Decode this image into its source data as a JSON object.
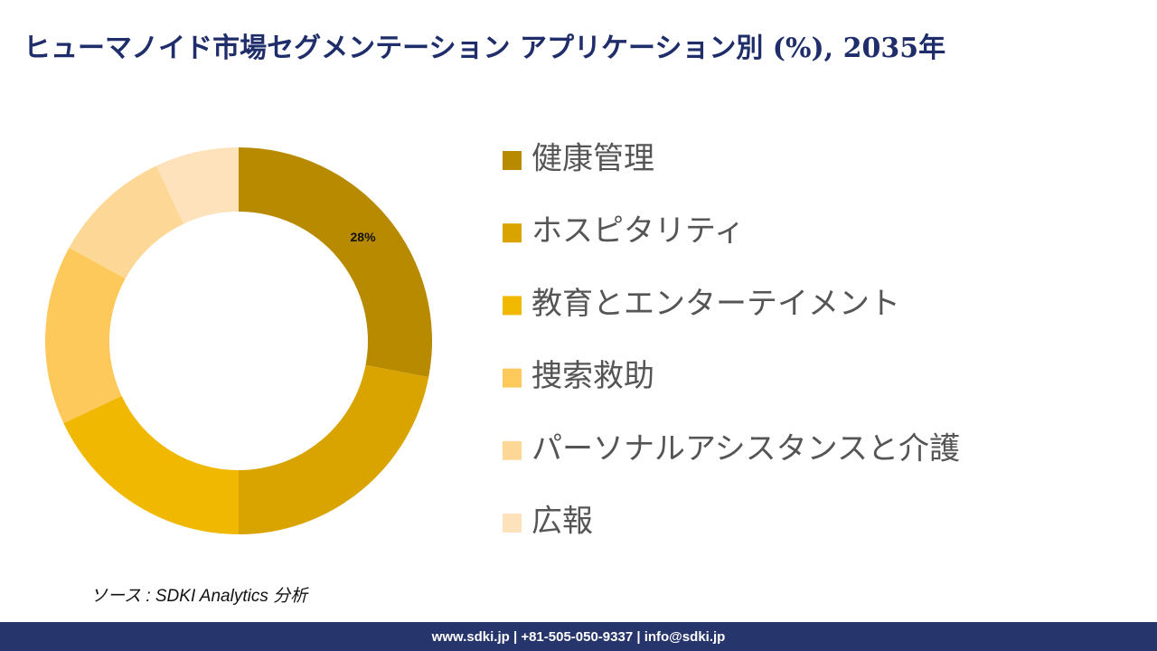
{
  "chart_data": {
    "type": "donut",
    "title": "ヒューマノイド市場セグメンテーション アプリケーション別 (%), 2035年",
    "categories": [
      "健康管理",
      "ホスピタリティ",
      "教育とエンターテイメント",
      "捜索救助",
      "パーソナルアシスタンスと介護",
      "広報"
    ],
    "values": [
      28,
      22,
      18,
      15,
      10,
      7
    ],
    "value_labels": [
      "28%",
      null,
      null,
      null,
      null,
      null
    ],
    "colors": [
      "#b88a00",
      "#d9a400",
      "#f0b800",
      "#fdc95a",
      "#fdd795",
      "#fde2bb"
    ]
  },
  "source": "ソース : SDKI Analytics 分析",
  "footer": "www.sdki.jp | +81-505-050-9337 | info@sdki.jp"
}
